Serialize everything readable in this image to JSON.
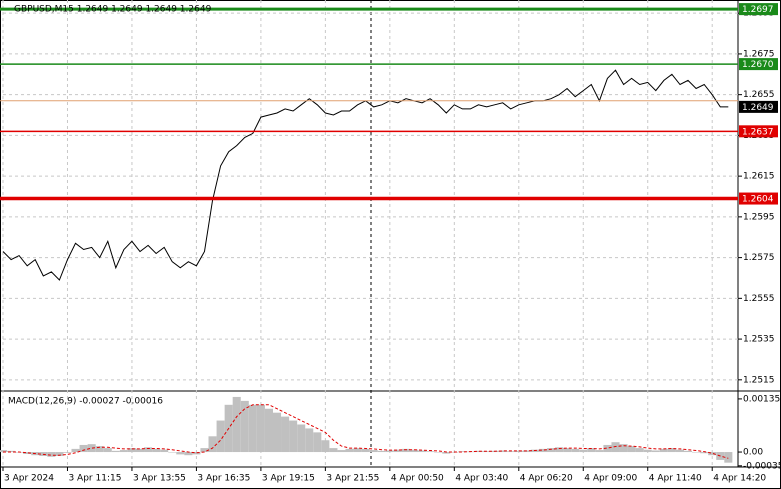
{
  "chart_data": [
    {
      "type": "line",
      "title": "GBPUSD,M15  1.2649 1.2649 1.2649 1.2649",
      "color": "#000000",
      "values": [
        1.2578,
        1.2574,
        1.2576,
        1.2571,
        1.2574,
        1.2566,
        1.2568,
        1.2564,
        1.2574,
        1.2582,
        1.2579,
        1.258,
        1.2575,
        1.2583,
        1.257,
        1.2579,
        1.2583,
        1.2578,
        1.2581,
        1.2577,
        1.258,
        1.2573,
        1.257,
        1.2573,
        1.2571,
        1.2578,
        1.2603,
        1.262,
        1.2627,
        1.263,
        1.2634,
        1.2636,
        1.2644,
        1.2645,
        1.2646,
        1.2648,
        1.2647,
        1.265,
        1.2653,
        1.265,
        1.2646,
        1.2645,
        1.2647,
        1.2647,
        1.265,
        1.2652,
        1.2649,
        1.265,
        1.2652,
        1.2651,
        1.2653,
        1.2652,
        1.2651,
        1.2653,
        1.265,
        1.2646,
        1.265,
        1.2648,
        1.2648,
        1.265,
        1.2649,
        1.265,
        1.2651,
        1.2648,
        1.265,
        1.2651,
        1.2652,
        1.2652,
        1.2653,
        1.2655,
        1.2658,
        1.2654,
        1.2657,
        1.266,
        1.2652,
        1.2663,
        1.2667,
        1.266,
        1.2663,
        1.266,
        1.2661,
        1.2657,
        1.2662,
        1.2665,
        1.266,
        1.2662,
        1.2658,
        1.266,
        1.2655,
        1.2649,
        1.2649
      ],
      "xlim": [
        0,
        91.2
      ],
      "ylim": [
        1.251,
        1.27
      ],
      "yticks": [
        1.2515,
        1.2535,
        1.2555,
        1.2575,
        1.2595,
        1.2615,
        1.2635,
        1.2655,
        1.2675,
        1.2695
      ],
      "xticks": [
        {
          "value": 0,
          "label": "3 Apr 2024"
        },
        {
          "value": 8,
          "label": "3 Apr 11:15"
        },
        {
          "value": 16,
          "label": "3 Apr 13:55"
        },
        {
          "value": 24,
          "label": "3 Apr 16:35"
        },
        {
          "value": 32,
          "label": "3 Apr 19:15"
        },
        {
          "value": 40,
          "label": "3 Apr 21:55"
        },
        {
          "value": 48,
          "label": "4 Apr 00:50"
        },
        {
          "value": 56,
          "label": "4 Apr 03:40"
        },
        {
          "value": 64,
          "label": "4 Apr 06:20"
        },
        {
          "value": 72,
          "label": "4 Apr 09:00"
        },
        {
          "value": 80,
          "label": "4 Apr 11:40"
        },
        {
          "value": 88,
          "label": "4 Apr 14:20"
        }
      ],
      "grid": true,
      "levels": [
        {
          "value": 1.2697,
          "label": "1.2697",
          "color": "#1a8a1a",
          "width": 3
        },
        {
          "value": 1.267,
          "label": "1.2670",
          "color": "#1a8a1a",
          "width": 1.5
        },
        {
          "value": 1.2652,
          "color": "#e0a070",
          "width": 1
        },
        {
          "value": 1.2649,
          "label": "1.2649",
          "color": "#000000",
          "width": 0
        },
        {
          "value": 1.2637,
          "label": "1.2637",
          "color": "#e00000",
          "width": 1.5
        },
        {
          "value": 1.2604,
          "label": "1.2604",
          "color": "#e00000",
          "width": 3.5
        }
      ]
    },
    {
      "type": "macd",
      "title": "MACD(12,26,9) -0.00027 -0.00016",
      "xlim": [
        0,
        91.2
      ],
      "ylim": [
        -0.00038,
        0.0015
      ],
      "yticks": [
        0.00135,
        {
          "value": 0,
          "label": "0.00"
        },
        -0.00035
      ],
      "histogram": {
        "color": "#c0c0c0",
        "values": [
          5e-05,
          3e-05,
          0,
          -5e-05,
          -8e-05,
          -0.0001,
          -0.00012,
          -0.0001,
          -2e-05,
          8e-05,
          0.00018,
          0.0002,
          0.00015,
          0.0001,
          3e-05,
          5e-05,
          0.0001,
          8e-05,
          0.00012,
          8e-05,
          6e-05,
          0,
          -6e-05,
          -8e-05,
          -6e-05,
          0.0001,
          0.0004,
          0.0008,
          0.0012,
          0.0014,
          0.0013,
          0.0012,
          0.0012,
          0.0011,
          0.001,
          0.0009,
          0.0008,
          0.0007,
          0.0006,
          0.0005,
          0.0003,
          0.0001,
          5e-05,
          8e-05,
          0.0001,
          8e-05,
          5e-05,
          3e-05,
          4e-05,
          6e-05,
          8e-05,
          6e-05,
          4e-05,
          2e-05,
          0,
          -4e-05,
          0,
          2e-05,
          1e-05,
          3e-05,
          2e-05,
          3e-05,
          4e-05,
          2e-05,
          3e-05,
          4e-05,
          6e-05,
          8e-05,
          0.0001,
          0.00012,
          0.0001,
          8e-05,
          6e-05,
          0.0001,
          5e-05,
          0.00018,
          0.00025,
          0.0002,
          0.00015,
          0.0001,
          6e-05,
          4e-05,
          8e-05,
          0.0001,
          6e-05,
          3e-05,
          0,
          -3e-05,
          -8e-05,
          -0.0002,
          -0.00027
        ]
      },
      "signal": {
        "color": "#e00000",
        "values": [
          0,
          0,
          0,
          -2e-05,
          -4e-05,
          -6e-05,
          -8e-05,
          -8e-05,
          -6e-05,
          -2e-05,
          5e-05,
          0.0001,
          0.00012,
          0.00012,
          0.0001,
          8e-05,
          8e-05,
          8e-05,
          9e-05,
          9e-05,
          8e-05,
          6e-05,
          3e-05,
          0,
          -2e-05,
          0,
          0.0001,
          0.0003,
          0.0006,
          0.0009,
          0.0011,
          0.0012,
          0.0012,
          0.0012,
          0.0011,
          0.001,
          0.0009,
          0.0008,
          0.0007,
          0.0006,
          0.0005,
          0.0003,
          0.00015,
          0.0001,
          0.0001,
          9e-05,
          8e-05,
          6e-05,
          5e-05,
          5e-05,
          6e-05,
          6e-05,
          5e-05,
          4e-05,
          3e-05,
          0,
          0,
          0,
          1e-05,
          2e-05,
          2e-05,
          2e-05,
          3e-05,
          3e-05,
          3e-05,
          3e-05,
          4e-05,
          5e-05,
          7e-05,
          9e-05,
          0.0001,
          0.0001,
          9e-05,
          9e-05,
          8e-05,
          0.0001,
          0.00014,
          0.00016,
          0.00015,
          0.00013,
          0.0001,
          8e-05,
          8e-05,
          9e-05,
          8e-05,
          6e-05,
          4e-05,
          1e-05,
          -3e-05,
          -0.0001,
          -0.00016
        ]
      }
    }
  ]
}
